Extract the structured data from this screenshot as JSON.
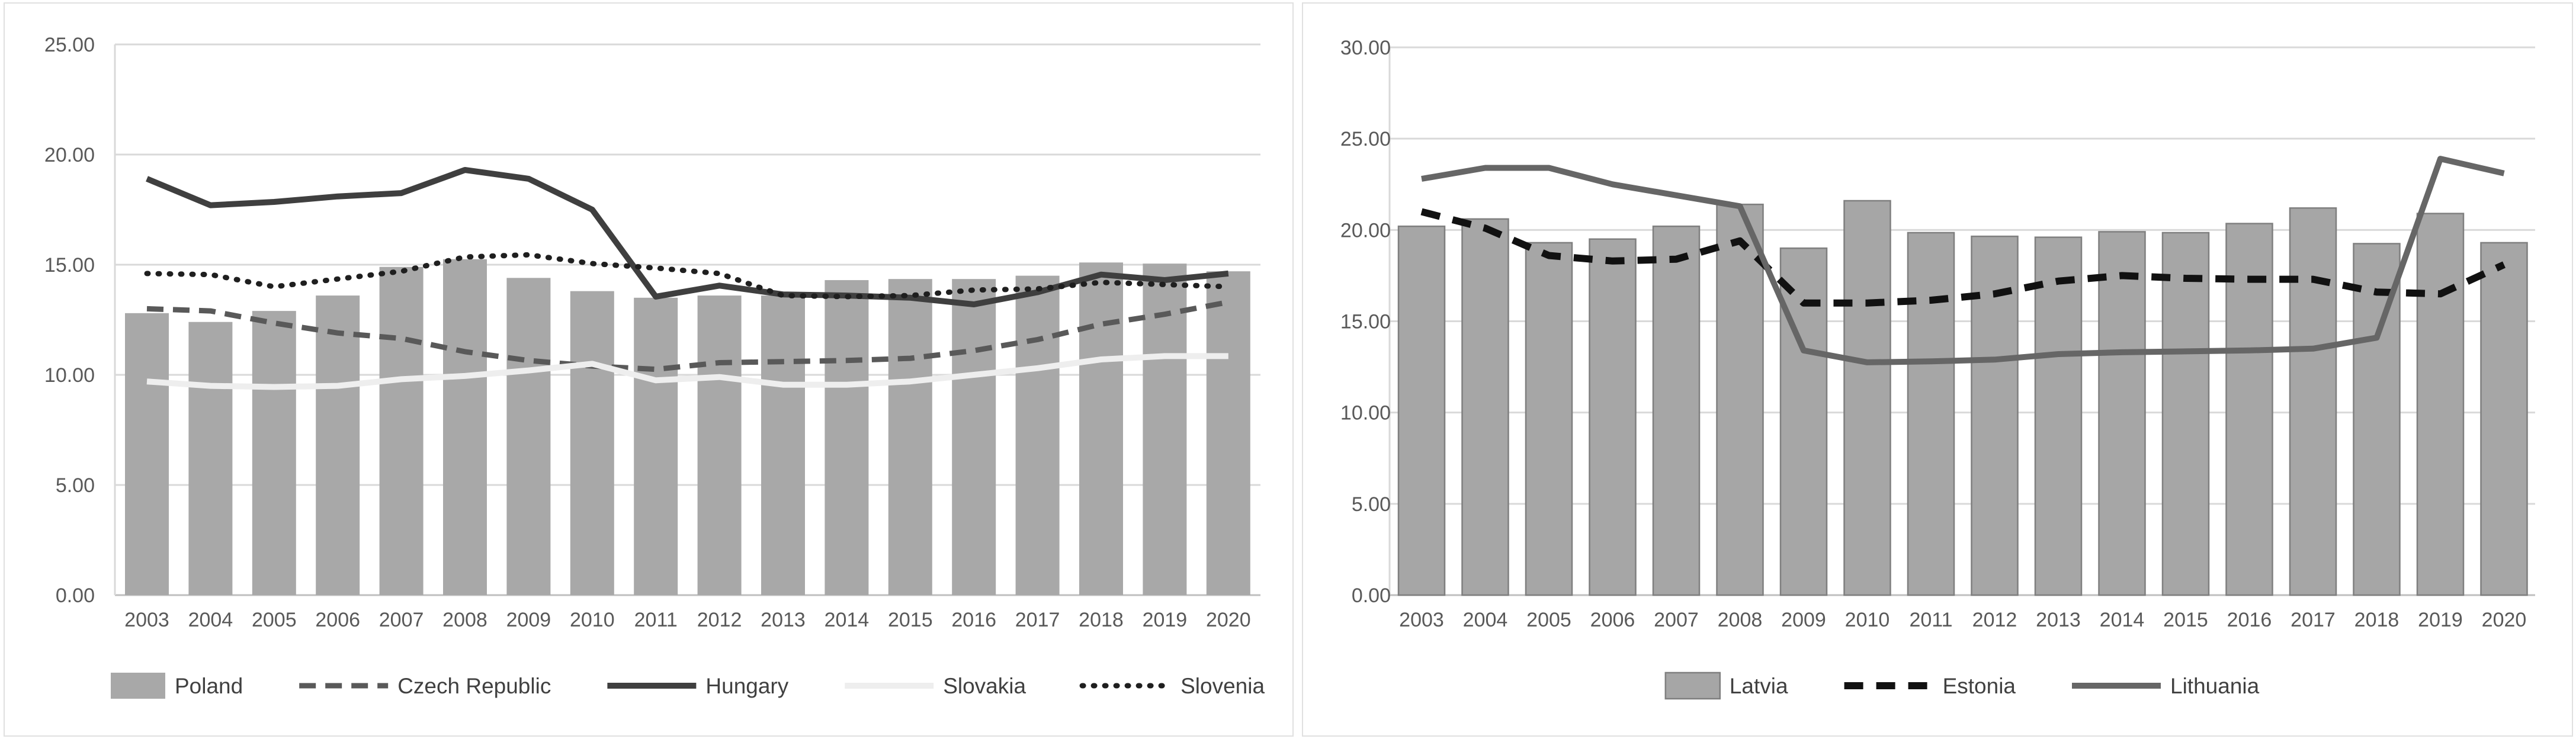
{
  "page": {
    "background": "#ffffff",
    "gridline_color": "#d9d9d9",
    "axis_line_color": "#bfbfbf",
    "axis_text_color": "#595959",
    "legend_text_color": "#404040"
  },
  "chart_data": [
    {
      "type": "bar",
      "subtype": "combo-bar-line",
      "title": "",
      "xlabel": "",
      "ylabel": "",
      "ylim": [
        0,
        25
      ],
      "ytick_step": 5,
      "ytick_labels": [
        "0.00",
        "5.00",
        "10.00",
        "15.00",
        "20.00",
        "25.00"
      ],
      "grid": true,
      "legend_position": "bottom",
      "categories": [
        "2003",
        "2004",
        "2005",
        "2006",
        "2007",
        "2008",
        "2009",
        "2010",
        "2011",
        "2012",
        "2013",
        "2014",
        "2015",
        "2016",
        "2017",
        "2018",
        "2019",
        "2020"
      ],
      "series": [
        {
          "name": "Poland",
          "type": "bar",
          "color": "#a8a8a8",
          "border_color": "",
          "values": [
            12.8,
            12.4,
            12.9,
            13.6,
            14.9,
            15.25,
            14.4,
            13.8,
            13.5,
            13.6,
            13.6,
            14.3,
            14.35,
            14.35,
            14.5,
            15.1,
            15.05,
            14.7
          ]
        },
        {
          "name": "Czech Republic",
          "type": "line",
          "style": "dashed",
          "color": "#595959",
          "width": 9,
          "values": [
            13.0,
            12.9,
            12.35,
            11.9,
            11.65,
            11.05,
            10.65,
            10.4,
            10.25,
            10.55,
            10.6,
            10.65,
            10.75,
            11.1,
            11.6,
            12.3,
            12.75,
            13.3
          ]
        },
        {
          "name": "Hungary",
          "type": "line",
          "style": "solid",
          "color": "#3f3f3f",
          "width": 10,
          "values": [
            18.9,
            17.7,
            17.85,
            18.1,
            18.25,
            19.3,
            18.9,
            17.5,
            13.55,
            14.05,
            13.65,
            13.6,
            13.5,
            13.2,
            13.75,
            14.55,
            14.3,
            14.6
          ]
        },
        {
          "name": "Slovakia",
          "type": "line",
          "style": "solid",
          "color": "#eeeeee",
          "width": 10,
          "values": [
            9.7,
            9.5,
            9.45,
            9.5,
            9.8,
            9.95,
            10.2,
            10.5,
            9.75,
            9.9,
            9.55,
            9.55,
            9.7,
            10.0,
            10.3,
            10.7,
            10.85,
            10.85
          ]
        },
        {
          "name": "Slovenia",
          "type": "line",
          "style": "dotted",
          "color": "#1f1f1f",
          "width": 9,
          "values": [
            14.6,
            14.55,
            14.0,
            14.35,
            14.7,
            15.35,
            15.45,
            15.05,
            14.85,
            14.6,
            13.6,
            13.55,
            13.6,
            13.85,
            13.9,
            14.2,
            14.1,
            14.0
          ]
        }
      ]
    },
    {
      "type": "bar",
      "subtype": "combo-bar-line",
      "title": "",
      "xlabel": "",
      "ylabel": "",
      "ylim": [
        0,
        30
      ],
      "ytick_step": 5,
      "ytick_labels": [
        "0.00",
        "5.00",
        "10.00",
        "15.00",
        "20.00",
        "25.00",
        "30.00"
      ],
      "grid": true,
      "legend_position": "bottom",
      "categories": [
        "2003",
        "2004",
        "2005",
        "2006",
        "2007",
        "2008",
        "2009",
        "2010",
        "2011",
        "2012",
        "2013",
        "2014",
        "2015",
        "2016",
        "2017",
        "2018",
        "2019",
        "2020"
      ],
      "series": [
        {
          "name": "Latvia",
          "type": "bar",
          "color": "#a6a6a6",
          "border_color": "#7f7f7f",
          "values": [
            20.2,
            20.6,
            19.3,
            19.5,
            20.2,
            21.4,
            19.0,
            21.6,
            19.85,
            19.65,
            19.6,
            19.9,
            19.85,
            20.35,
            21.2,
            19.25,
            20.9,
            19.3
          ]
        },
        {
          "name": "Estonia",
          "type": "line",
          "style": "dashed-bold",
          "color": "#111111",
          "width": 12,
          "values": [
            21.0,
            20.1,
            18.6,
            18.3,
            18.4,
            19.4,
            16.0,
            16.0,
            16.15,
            16.5,
            17.2,
            17.5,
            17.35,
            17.3,
            17.3,
            16.6,
            16.5,
            18.1
          ]
        },
        {
          "name": "Lithuania",
          "type": "line",
          "style": "solid",
          "color": "#666666",
          "width": 10,
          "values": [
            22.8,
            23.4,
            23.4,
            22.5,
            21.9,
            21.3,
            13.4,
            12.75,
            12.8,
            12.9,
            13.2,
            13.3,
            13.35,
            13.4,
            13.5,
            14.1,
            23.9,
            23.1
          ]
        }
      ]
    }
  ]
}
